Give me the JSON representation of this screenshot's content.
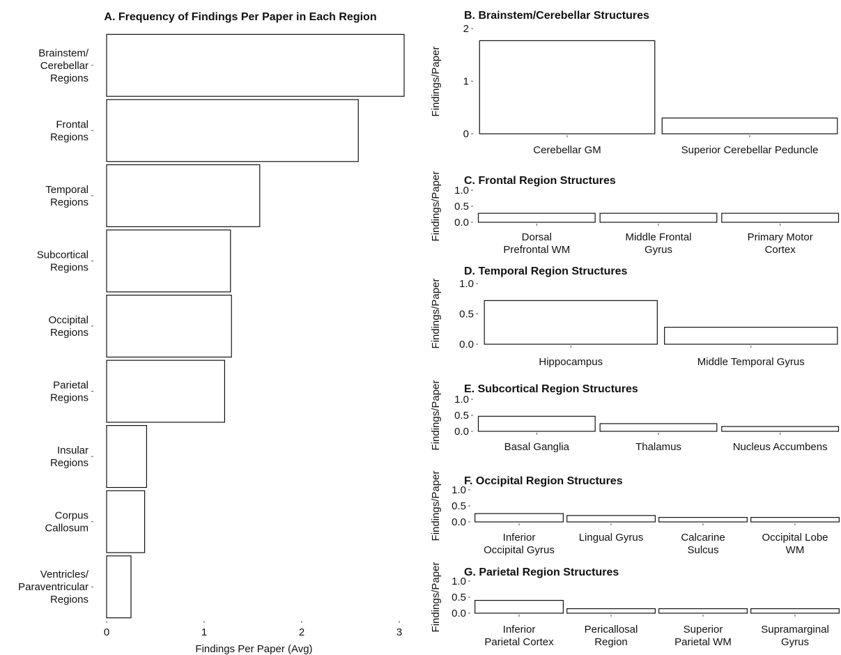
{
  "chart_data": [
    {
      "id": "A",
      "type": "bar",
      "orientation": "horizontal",
      "title": "A. Frequency of Findings Per Paper in Each Region",
      "xlabel": "Findings Per Paper (Avg)",
      "ylabel": "",
      "categories": [
        [
          "Brainstem/",
          "Cerebellar",
          "Regions"
        ],
        [
          "Frontal",
          "Regions"
        ],
        [
          "Temporal",
          "Regions"
        ],
        [
          "Subcortical",
          "Regions"
        ],
        [
          "Occipital",
          "Regions"
        ],
        [
          "Parietal",
          "Regions"
        ],
        [
          "Insular",
          "Regions"
        ],
        [
          "Corpus",
          "Callosum"
        ],
        [
          "Ventricles/",
          "Paraventricular",
          "Regions"
        ]
      ],
      "values": [
        3.05,
        2.58,
        1.57,
        1.27,
        1.28,
        1.21,
        0.41,
        0.39,
        0.25
      ],
      "xlim": [
        0,
        3.05
      ],
      "xticks": [
        "0",
        "1",
        "2",
        "3"
      ],
      "grid": false
    },
    {
      "id": "B",
      "type": "bar",
      "title": "B. Brainstem/Cerebellar Structures",
      "ylabel": "Findings/Paper",
      "categories": [
        [
          "Cerebellar GM"
        ],
        [
          "Superior Cerebellar Peduncle"
        ]
      ],
      "values": [
        1.77,
        0.3
      ],
      "ylim": [
        0,
        2
      ],
      "yticks": [
        "0",
        "1",
        "2"
      ],
      "grid": false
    },
    {
      "id": "C",
      "type": "bar",
      "title": "C. Frontal Region Structures",
      "ylabel": "Findings/Paper",
      "categories": [
        [
          "Dorsal",
          "Prefrontal WM"
        ],
        [
          "Middle Frontal",
          "Gyrus"
        ],
        [
          "Primary Motor",
          "Cortex"
        ]
      ],
      "values": [
        0.28,
        0.28,
        0.28
      ],
      "ylim": [
        0,
        1.0
      ],
      "yticks": [
        "0.0",
        "0.5",
        "1.0"
      ],
      "grid": false
    },
    {
      "id": "D",
      "type": "bar",
      "title": "D. Temporal Region Structures",
      "ylabel": "Findings/Paper",
      "categories": [
        [
          "Hippocampus"
        ],
        [
          "Middle Temporal Gyrus"
        ]
      ],
      "values": [
        0.72,
        0.28
      ],
      "ylim": [
        0,
        1.0
      ],
      "yticks": [
        "0.0",
        "0.5",
        "1.0"
      ],
      "grid": false
    },
    {
      "id": "E",
      "type": "bar",
      "title": "E. Subcortical Region Structures",
      "ylabel": "Findings/Paper",
      "categories": [
        [
          "Basal Ganglia"
        ],
        [
          "Thalamus"
        ],
        [
          "Nucleus Accumbens"
        ]
      ],
      "values": [
        0.47,
        0.24,
        0.15
      ],
      "ylim": [
        0,
        1.0
      ],
      "yticks": [
        "0.0",
        "0.5",
        "1.0"
      ],
      "grid": false
    },
    {
      "id": "F",
      "type": "bar",
      "title": "F. Occipital Region Structures",
      "ylabel": "Findings/Paper",
      "categories": [
        [
          "Inferior",
          "Occipital Gyrus"
        ],
        [
          "Lingual Gyrus"
        ],
        [
          "Calcarine",
          "Sulcus"
        ],
        [
          "Occipital Lobe",
          "WM"
        ]
      ],
      "values": [
        0.26,
        0.2,
        0.14,
        0.14
      ],
      "ylim": [
        0,
        1.0
      ],
      "yticks": [
        "0.0",
        "0.5",
        "1.0"
      ],
      "grid": false
    },
    {
      "id": "G",
      "type": "bar",
      "title": "G. Parietal Region Structures",
      "ylabel": "Findings/Paper",
      "categories": [
        [
          "Inferior",
          "Parietal Cortex"
        ],
        [
          "Pericallosal",
          "Region"
        ],
        [
          "Superior",
          "Parietal WM"
        ],
        [
          "Supramarginal",
          "Gyrus"
        ]
      ],
      "values": [
        0.4,
        0.14,
        0.14,
        0.14
      ],
      "ylim": [
        0,
        1.0
      ],
      "yticks": [
        "0.0",
        "0.5",
        "1.0"
      ],
      "grid": false
    }
  ],
  "colors": {
    "bar_fill": "#ffffff",
    "bar_stroke": "#111111",
    "text": "#111111"
  }
}
